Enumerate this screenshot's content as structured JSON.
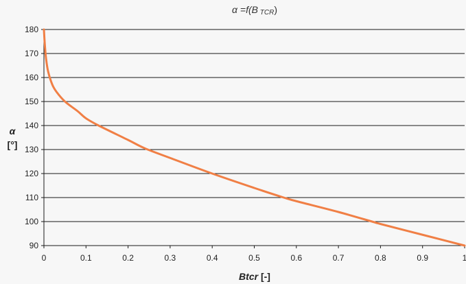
{
  "chart_data": {
    "type": "line",
    "title": {
      "main": "α =f(B",
      "sub": " TCR",
      "close": ")"
    },
    "xlabel": {
      "main": "Btcr",
      "unit": " [-]"
    },
    "ylabel": {
      "line1": "α",
      "line2": "[°]"
    },
    "xlim": [
      0,
      1
    ],
    "ylim": [
      90,
      180
    ],
    "x_ticks": [
      "0",
      "0.1",
      "0.2",
      "0.3",
      "0.4",
      "0.5",
      "0.6",
      "0.7",
      "0.8",
      "0.9",
      "1"
    ],
    "y_ticks": [
      "90",
      "100",
      "110",
      "120",
      "130",
      "140",
      "150",
      "160",
      "170",
      "180"
    ],
    "grid": "horizontal",
    "series": [
      {
        "color": "#f07f45",
        "x": [
          0,
          0.002,
          0.005,
          0.01,
          0.02,
          0.03,
          0.05,
          0.08,
          0.1,
          0.13,
          0.2,
          0.24,
          0.3,
          0.4,
          0.5,
          0.57,
          0.6,
          0.7,
          0.78,
          0.8,
          0.9,
          1.0
        ],
        "y": [
          180,
          174,
          168,
          162.5,
          157,
          154,
          150,
          146,
          143,
          140,
          134,
          130.5,
          126.5,
          120,
          114,
          110,
          108.5,
          104,
          100,
          99,
          94.5,
          90
        ]
      }
    ]
  }
}
